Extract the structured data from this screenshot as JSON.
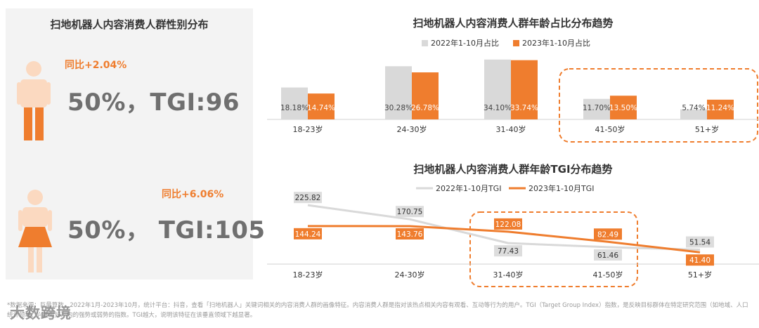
{
  "gender": {
    "title": "扫地机器人内容消费人群性别分布",
    "male": {
      "yoy": "同比+2.04%",
      "stat": "50%，TGI:96",
      "icon": "male-person-icon"
    },
    "female": {
      "yoy": "同比+6.06%",
      "stat": "50%， TGI:105",
      "icon": "female-person-icon"
    }
  },
  "colors": {
    "grey": "#d9d9d9",
    "orange": "#ef7d2e",
    "panel": "#f3f3f3"
  },
  "footnote": "*数据来源：巨量算数，2022年1月-2023年10月，统计平台：抖音，查看「扫地机器人」关键词相关的内容消费人群的画像特征。内容消费人群是指对该热点相关内容有观看、互动等行为的用户。TGI（Target Group Index）指数，是反映目标群体在特定研究范围（如地域、人口统计领域、兴趣爱好）内的强势或弱势的指数。TGI越大，说明该特征在该垂直领域下越显著。",
  "watermark": "大数跨境",
  "chart_data": [
    {
      "type": "bar",
      "title": "扫地机器人内容消费人群年龄占比分布趋势",
      "legend_position": "top",
      "categories": [
        "18-23岁",
        "24-30岁",
        "31-40岁",
        "41-50岁",
        "51+岁"
      ],
      "series": [
        {
          "name": "2022年1-10月占比",
          "values": [
            18.18,
            30.28,
            34.1,
            11.7,
            5.74
          ],
          "labels": [
            "18.18%",
            "30.28%",
            "34.10%",
            "11.70%",
            "5.74%"
          ],
          "color": "#d9d9d9"
        },
        {
          "name": "2023年1-10月占比",
          "values": [
            14.74,
            26.78,
            33.74,
            13.5,
            11.24
          ],
          "labels": [
            "14.74%",
            "26.78%",
            "33.74%",
            "13.50%",
            "11.24%"
          ],
          "color": "#ef7d2e"
        }
      ],
      "ylim": [
        0,
        36
      ],
      "grid": false,
      "highlight_categories": [
        "41-50岁",
        "51+岁"
      ]
    },
    {
      "type": "line",
      "title": "扫地机器人内容消费人群年龄TGI分布趋势",
      "legend_position": "top",
      "categories": [
        "18-23岁",
        "24-30岁",
        "31-40岁",
        "41-50岁",
        "51+岁"
      ],
      "series": [
        {
          "name": "2022年1-10月TGI",
          "values": [
            225.82,
            170.75,
            77.43,
            61.46,
            51.54
          ],
          "labels": [
            "225.82",
            "170.75",
            "77.43",
            "61.46",
            "51.54"
          ],
          "color": "#d9d9d9"
        },
        {
          "name": "2023年1-10月TGI",
          "values": [
            144.24,
            143.76,
            122.08,
            82.49,
            41.4
          ],
          "labels": [
            "144.24",
            "143.76",
            "122.08",
            "82.49",
            "41.40"
          ],
          "color": "#ef7d2e"
        }
      ],
      "ylim": [
        20,
        240
      ],
      "grid": false,
      "highlight_categories": [
        "31-40岁",
        "41-50岁"
      ]
    }
  ]
}
